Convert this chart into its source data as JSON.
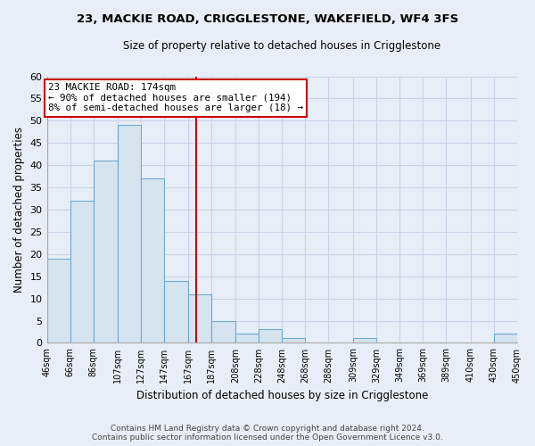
{
  "title": "23, MACKIE ROAD, CRIGGLESTONE, WAKEFIELD, WF4 3FS",
  "subtitle": "Size of property relative to detached houses in Crigglestone",
  "xlabel": "Distribution of detached houses by size in Crigglestone",
  "ylabel": "Number of detached properties",
  "bar_edges": [
    46,
    66,
    86,
    107,
    127,
    147,
    167,
    187,
    208,
    228,
    248,
    268,
    288,
    309,
    329,
    349,
    369,
    389,
    410,
    430,
    450
  ],
  "bar_heights": [
    19,
    32,
    41,
    49,
    37,
    14,
    11,
    5,
    2,
    3,
    1,
    0,
    0,
    1,
    0,
    0,
    0,
    0,
    0,
    2
  ],
  "bar_color": "#d6e4f0",
  "bar_edgecolor": "#6aabce",
  "vline_x": 174,
  "vline_color": "#cc0000",
  "annotation_title": "23 MACKIE ROAD: 174sqm",
  "annotation_line1": "← 90% of detached houses are smaller (194)",
  "annotation_line2": "8% of semi-detached houses are larger (18) →",
  "annotation_box_edgecolor": "#cc0000",
  "annotation_box_facecolor": "#ffffff",
  "ylim": [
    0,
    60
  ],
  "yticks": [
    0,
    5,
    10,
    15,
    20,
    25,
    30,
    35,
    40,
    45,
    50,
    55,
    60
  ],
  "tick_labels": [
    "46sqm",
    "66sqm",
    "86sqm",
    "107sqm",
    "127sqm",
    "147sqm",
    "167sqm",
    "187sqm",
    "208sqm",
    "228sqm",
    "248sqm",
    "268sqm",
    "288sqm",
    "309sqm",
    "329sqm",
    "349sqm",
    "369sqm",
    "389sqm",
    "410sqm",
    "430sqm",
    "450sqm"
  ],
  "footer_line1": "Contains HM Land Registry data © Crown copyright and database right 2024.",
  "footer_line2": "Contains public sector information licensed under the Open Government Licence v3.0.",
  "background_color": "#e8eef7",
  "plot_bg_color": "#e8eef7",
  "grid_color": "#c8d4e8"
}
